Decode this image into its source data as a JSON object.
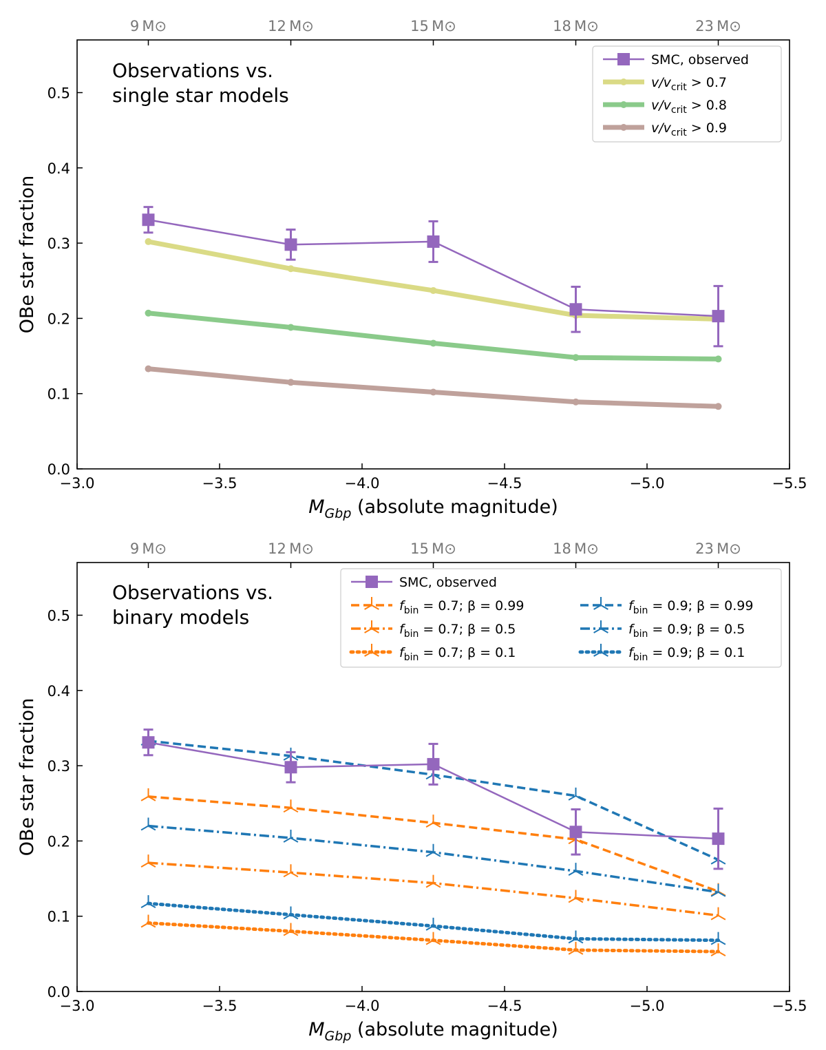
{
  "chart_data": [
    {
      "type": "line",
      "annotation": [
        "Observations vs.",
        "single star models"
      ],
      "xlabel": {
        "symbol": "M",
        "subscript": "Gbp",
        "text": " (absolute magnitude)"
      },
      "ylabel": "OBe star fraction",
      "xlim": [
        -3.0,
        -5.5
      ],
      "ylim": [
        0.0,
        0.57
      ],
      "xticks": [
        -3.0,
        -3.5,
        -4.0,
        -4.5,
        -5.0,
        -5.5
      ],
      "xtick_labels": [
        "−3.0",
        "−3.5",
        "−4.0",
        "−4.5",
        "−5.0",
        "−5.5"
      ],
      "yticks": [
        0.0,
        0.1,
        0.2,
        0.3,
        0.4,
        0.5
      ],
      "ytick_labels": [
        "0.0",
        "0.1",
        "0.2",
        "0.3",
        "0.4",
        "0.5"
      ],
      "top_axis": {
        "x": [
          -3.25,
          -3.75,
          -4.25,
          -4.75,
          -5.25
        ],
        "labels": [
          "9 M⊙",
          "12 M⊙",
          "15 M⊙",
          "18 M⊙",
          "23 M⊙"
        ]
      },
      "legend_position": "top-right",
      "x": [
        -3.25,
        -3.75,
        -4.25,
        -4.75,
        -5.25
      ],
      "series": [
        {
          "name": "SMC, observed",
          "values": [
            0.331,
            0.298,
            0.302,
            0.212,
            0.203
          ],
          "yerr": [
            0.017,
            0.02,
            0.027,
            0.03,
            0.04
          ],
          "color": "#9467bd",
          "style": "solid",
          "marker": "square",
          "width": 2.5,
          "opacity": 1
        },
        {
          "name": "v/vcrit > 0.7",
          "label_parts": [
            "v/v",
            "crit",
            " > 0.7"
          ],
          "values": [
            0.302,
            0.266,
            0.237,
            0.204,
            0.199
          ],
          "color": "#bcbd22",
          "style": "solid",
          "marker": "dot",
          "width": 7,
          "opacity": 0.55
        },
        {
          "name": "v/vcrit > 0.8",
          "label_parts": [
            "v/v",
            "crit",
            " > 0.8"
          ],
          "values": [
            0.207,
            0.188,
            0.167,
            0.148,
            0.146
          ],
          "color": "#2ca02c",
          "style": "solid",
          "marker": "dot",
          "width": 7,
          "opacity": 0.55
        },
        {
          "name": "v/vcrit > 0.9",
          "label_parts": [
            "v/v",
            "crit",
            " > 0.9"
          ],
          "values": [
            0.133,
            0.115,
            0.102,
            0.089,
            0.083
          ],
          "color": "#8c564b",
          "style": "solid",
          "marker": "dot",
          "width": 7,
          "opacity": 0.55
        }
      ]
    },
    {
      "type": "line",
      "annotation": [
        "Observations vs.",
        "binary models"
      ],
      "xlabel": {
        "symbol": "M",
        "subscript": "Gbp",
        "text": " (absolute magnitude)"
      },
      "ylabel": "OBe star fraction",
      "xlim": [
        -3.0,
        -5.5
      ],
      "ylim": [
        0.0,
        0.57
      ],
      "xticks": [
        -3.0,
        -3.5,
        -4.0,
        -4.5,
        -5.0,
        -5.5
      ],
      "xtick_labels": [
        "−3.0",
        "−3.5",
        "−4.0",
        "−4.5",
        "−5.0",
        "−5.5"
      ],
      "yticks": [
        0.0,
        0.1,
        0.2,
        0.3,
        0.4,
        0.5
      ],
      "ytick_labels": [
        "0.0",
        "0.1",
        "0.2",
        "0.3",
        "0.4",
        "0.5"
      ],
      "top_axis": {
        "x": [
          -3.25,
          -3.75,
          -4.25,
          -4.75,
          -5.25
        ],
        "labels": [
          "9 M⊙",
          "12 M⊙",
          "15 M⊙",
          "18 M⊙",
          "23 M⊙"
        ]
      },
      "legend_position": "top-right",
      "x": [
        -3.25,
        -3.75,
        -4.25,
        -4.75,
        -5.25
      ],
      "series": [
        {
          "name": "SMC, observed",
          "values": [
            0.331,
            0.298,
            0.302,
            0.212,
            0.203
          ],
          "yerr": [
            0.017,
            0.02,
            0.027,
            0.03,
            0.04
          ],
          "color": "#9467bd",
          "style": "solid",
          "marker": "square",
          "width": 2.5,
          "opacity": 1
        },
        {
          "name": "fbin = 0.7; β = 0.99",
          "label_parts": [
            "f",
            "bin",
            " = 0.7; β = 0.99"
          ],
          "values": [
            0.259,
            0.244,
            0.224,
            0.202,
            0.133
          ],
          "color": "#ff7f0e",
          "style": "dashed",
          "marker": "tri",
          "width": 3.5,
          "opacity": 1
        },
        {
          "name": "fbin = 0.7; β = 0.5",
          "label_parts": [
            "f",
            "bin",
            " = 0.7; β = 0.5"
          ],
          "values": [
            0.171,
            0.158,
            0.144,
            0.124,
            0.101
          ],
          "color": "#ff7f0e",
          "style": "dashdot",
          "marker": "tri",
          "width": 3.5,
          "opacity": 1
        },
        {
          "name": "fbin = 0.7; β = 0.1",
          "label_parts": [
            "f",
            "bin",
            " = 0.7; β = 0.1"
          ],
          "values": [
            0.091,
            0.08,
            0.068,
            0.055,
            0.053
          ],
          "color": "#ff7f0e",
          "style": "dotted",
          "marker": "tri",
          "width": 5,
          "opacity": 1
        },
        {
          "name": "fbin = 0.9; β = 0.99",
          "label_parts": [
            "f",
            "bin",
            " = 0.9; β = 0.99"
          ],
          "values": [
            0.333,
            0.313,
            0.288,
            0.26,
            0.175
          ],
          "color": "#1f77b4",
          "style": "dashed",
          "marker": "tri",
          "width": 3.5,
          "opacity": 1
        },
        {
          "name": "fbin = 0.9; β = 0.5",
          "label_parts": [
            "f",
            "bin",
            " = 0.9; β = 0.5"
          ],
          "values": [
            0.22,
            0.204,
            0.185,
            0.16,
            0.132
          ],
          "color": "#1f77b4",
          "style": "dashdot",
          "marker": "tri",
          "width": 3.5,
          "opacity": 1
        },
        {
          "name": "fbin = 0.9; β = 0.1",
          "label_parts": [
            "f",
            "bin",
            " = 0.9; β = 0.1"
          ],
          "values": [
            0.117,
            0.102,
            0.087,
            0.07,
            0.068
          ],
          "color": "#1f77b4",
          "style": "dotted",
          "marker": "tri",
          "width": 5,
          "opacity": 1
        }
      ]
    }
  ]
}
